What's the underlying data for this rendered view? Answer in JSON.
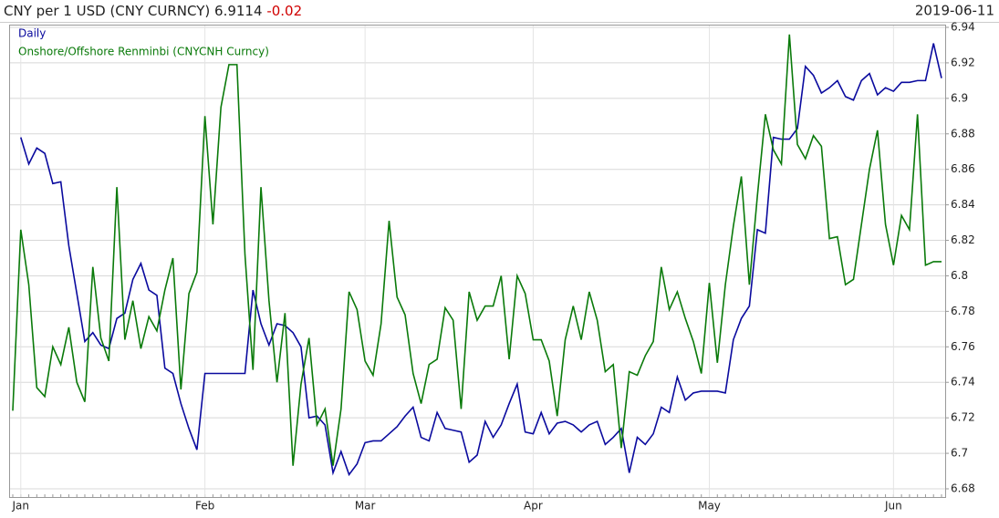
{
  "chart_data": {
    "type": "line",
    "title": "CNY per 1 USD (CNY CURNCY)",
    "last_value": 6.9114,
    "change": -0.02,
    "date": "2019-06-11",
    "categories": [
      null,
      "Jan",
      null,
      null,
      null,
      null,
      null,
      null,
      null,
      null,
      null,
      null,
      null,
      null,
      null,
      null,
      null,
      null,
      null,
      null,
      null,
      null,
      null,
      null,
      "Feb",
      null,
      null,
      null,
      null,
      null,
      null,
      null,
      null,
      null,
      null,
      null,
      null,
      null,
      null,
      null,
      null,
      null,
      null,
      null,
      "Mar",
      null,
      null,
      null,
      null,
      null,
      null,
      null,
      null,
      null,
      null,
      null,
      null,
      null,
      null,
      null,
      null,
      null,
      null,
      null,
      null,
      "Apr",
      null,
      null,
      null,
      null,
      null,
      null,
      null,
      null,
      null,
      null,
      null,
      null,
      null,
      null,
      null,
      null,
      null,
      null,
      null,
      null,
      null,
      "May",
      null,
      null,
      null,
      null,
      null,
      null,
      null,
      null,
      null,
      null,
      null,
      null,
      null,
      null,
      null,
      null,
      null,
      null,
      null,
      null,
      null,
      null,
      "Jun",
      null,
      null,
      null,
      null,
      null,
      null
    ],
    "series": [
      {
        "name": "Daily",
        "color": "#0a0a9e",
        "values": [
          null,
          6.878,
          6.863,
          6.872,
          6.869,
          6.852,
          6.853,
          6.817,
          6.79,
          6.763,
          6.768,
          6.761,
          6.759,
          6.776,
          6.779,
          6.798,
          6.807,
          6.792,
          6.789,
          6.748,
          6.745,
          6.728,
          6.714,
          6.702,
          6.745,
          6.745,
          6.745,
          6.745,
          6.745,
          6.745,
          6.792,
          6.773,
          6.761,
          6.773,
          6.772,
          6.768,
          6.76,
          6.72,
          6.721,
          6.716,
          6.689,
          6.701,
          6.688,
          6.694,
          6.706,
          6.707,
          6.707,
          6.711,
          6.715,
          6.721,
          6.726,
          6.709,
          6.707,
          6.723,
          6.714,
          6.713,
          6.712,
          6.695,
          6.699,
          6.718,
          6.709,
          6.716,
          6.728,
          6.739,
          6.712,
          6.711,
          6.723,
          6.711,
          6.717,
          6.718,
          6.716,
          6.712,
          6.716,
          6.718,
          6.705,
          6.709,
          6.714,
          6.689,
          6.709,
          6.705,
          6.711,
          6.726,
          6.723,
          6.743,
          6.73,
          6.734,
          6.735,
          6.735,
          6.735,
          6.734,
          6.764,
          6.776,
          6.783,
          6.826,
          6.824,
          6.878,
          6.877,
          6.877,
          6.883,
          6.918,
          6.913,
          6.903,
          6.906,
          6.91,
          6.901,
          6.899,
          6.91,
          6.914,
          6.902,
          6.906,
          6.904,
          6.909,
          6.909,
          6.91,
          6.91,
          6.931,
          6.9114
        ]
      },
      {
        "name": "Onshore/Offshore Renminbi (CNYCNH Curncy)",
        "color": "#0a7a0a",
        "values": [
          6.724,
          6.826,
          6.795,
          6.737,
          6.732,
          6.76,
          6.75,
          6.771,
          6.74,
          6.729,
          6.805,
          6.765,
          6.752,
          6.85,
          6.764,
          6.786,
          6.759,
          6.777,
          6.769,
          6.792,
          6.81,
          6.736,
          6.79,
          6.802,
          6.89,
          6.829,
          6.895,
          6.919,
          6.919,
          6.812,
          6.747,
          6.85,
          6.786,
          6.74,
          6.779,
          6.693,
          6.739,
          6.765,
          6.716,
          6.725,
          6.693,
          6.725,
          6.791,
          6.781,
          6.752,
          6.744,
          6.773,
          6.831,
          6.788,
          6.778,
          6.745,
          6.728,
          6.75,
          6.753,
          6.782,
          6.775,
          6.725,
          6.791,
          6.775,
          6.783,
          6.783,
          6.8,
          6.753,
          6.8,
          6.79,
          6.764,
          6.764,
          6.752,
          6.721,
          6.764,
          6.783,
          6.764,
          6.791,
          6.775,
          6.746,
          6.75,
          6.703,
          6.746,
          6.744,
          6.755,
          6.763,
          6.805,
          6.781,
          6.791,
          6.776,
          6.763,
          6.745,
          6.796,
          6.751,
          6.795,
          6.828,
          6.856,
          6.795,
          6.845,
          6.891,
          6.871,
          6.863,
          6.936,
          6.874,
          6.866,
          6.879,
          6.873,
          6.821,
          6.822,
          6.795,
          6.798,
          6.829,
          6.86,
          6.882,
          6.829,
          6.806,
          6.834,
          6.826,
          6.891,
          6.806,
          6.808,
          6.808
        ]
      }
    ],
    "ylim": [
      6.68,
      6.94
    ],
    "yticks": [
      6.68,
      6.7,
      6.72,
      6.74,
      6.76,
      6.78,
      6.8,
      6.82,
      6.84,
      6.86,
      6.88,
      6.9,
      6.92,
      6.94
    ],
    "grid": true
  }
}
